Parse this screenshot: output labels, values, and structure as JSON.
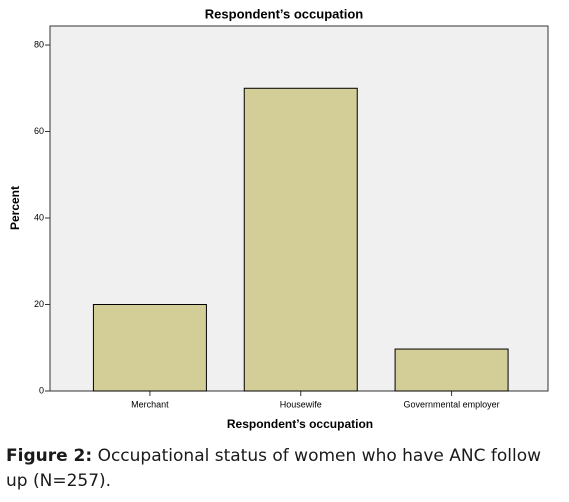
{
  "chart_data": {
    "type": "bar",
    "title": "Respondent’s occupation",
    "x_label": "Respondent’s occupation",
    "y_label": "Percent",
    "categories": [
      "Merchant",
      "Housewife",
      "Governmental employer"
    ],
    "values": [
      20,
      70,
      9.7
    ],
    "color": "#d3ce97",
    "ylim": [
      0,
      84.4
    ],
    "yticks": [
      0,
      20,
      40,
      60,
      80
    ],
    "grid": false
  },
  "caption": {
    "label": "Figure 2:",
    "text": "Occupational status of women who have ANC follow up (N=257)."
  }
}
